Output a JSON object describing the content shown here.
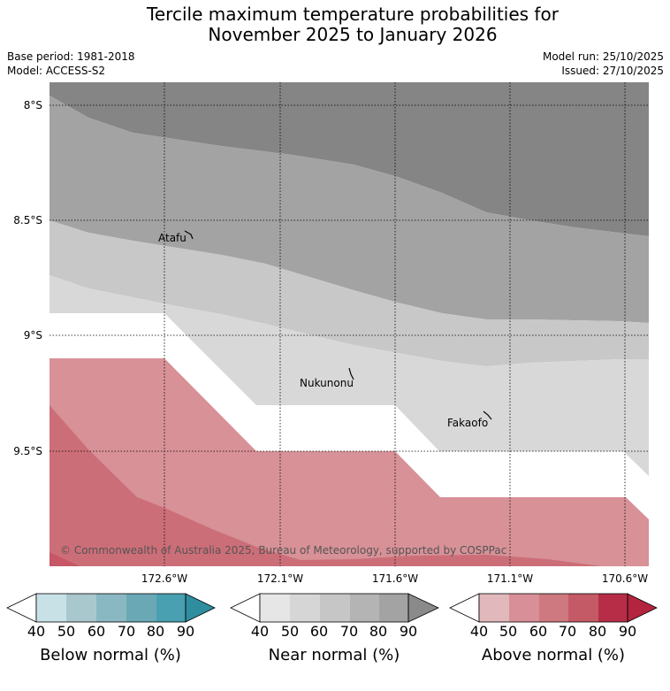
{
  "header": {
    "title_line1": "Tercile maximum temperature probabilities for",
    "title_line2": "November 2025 to January 2026",
    "base_period": "Base period: 1981-2018",
    "model": "Model: ACCESS-S2",
    "model_run": "Model run: 25/10/2025",
    "issued": "Issued: 27/10/2025"
  },
  "map": {
    "lat_labels": [
      "8°S",
      "8.5°S",
      "9°S",
      "9.5°S"
    ],
    "lon_labels": [
      "172.6°W",
      "172.1°W",
      "171.6°W",
      "171.1°W",
      "170.6°W"
    ],
    "places": [
      "Atafu",
      "Nukunonu",
      "Fakaofo"
    ],
    "copyright": "© Commonwealth of Australia 2025, Bureau of Meteorology, supported by COSPPac"
  },
  "colorbars": [
    {
      "name": "below",
      "title": "Below normal (%)",
      "ticks": [
        "40",
        "50",
        "60",
        "70",
        "80",
        "90"
      ],
      "colors": [
        "#c8e1e6",
        "#a9c8cd",
        "#8ab8c2",
        "#6aa8b5",
        "#48a0b1",
        "#2e8ea0"
      ]
    },
    {
      "name": "near",
      "title": "Near normal (%)",
      "ticks": [
        "40",
        "50",
        "60",
        "70",
        "80",
        "90"
      ],
      "colors": [
        "#e6e6e6",
        "#d6d6d6",
        "#c6c6c6",
        "#b4b4b4",
        "#a3a3a3",
        "#8a8a8a"
      ]
    },
    {
      "name": "above",
      "title": "Above normal (%)",
      "ticks": [
        "40",
        "50",
        "60",
        "70",
        "80",
        "90"
      ],
      "colors": [
        "#e1b8bb",
        "#d88f97",
        "#ce7880",
        "#c45a66",
        "#b72d47",
        "#b3243e"
      ]
    }
  ]
}
